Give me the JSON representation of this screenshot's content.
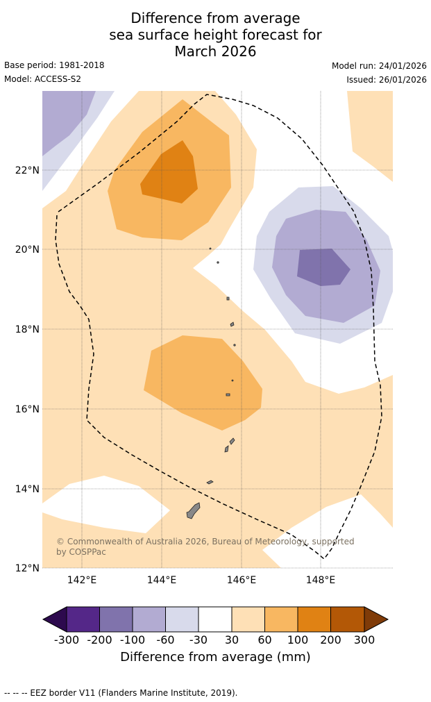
{
  "title": {
    "line1": "Difference from average",
    "line2": "sea surface height forecast for",
    "line3": "March 2026"
  },
  "meta": {
    "base_period": "Base period: 1981-2018",
    "model": "Model: ACCESS-S2",
    "model_run": "Model run: 24/01/2026",
    "issued": "Issued: 26/01/2026"
  },
  "map": {
    "lat_labels": [
      "22°N",
      "20°N",
      "18°N",
      "16°N",
      "14°N",
      "12°N"
    ],
    "lon_labels": [
      "142°E",
      "144°E",
      "146°E",
      "148°E"
    ],
    "copyright_line1": "© Commonwealth of Australia 2026, Bureau of Meteorology, supported",
    "copyright_line2": "by COSPPac",
    "colors": {
      "neg300": "#2d0a4e",
      "neg200": "#542788",
      "neg100": "#8073ac",
      "neg60": "#b2abd2",
      "neg30": "#d8daeb",
      "zero": "#ffffff",
      "pos30": "#fee0b6",
      "pos60": "#f8b761",
      "pos100": "#e08214",
      "pos200": "#b35806",
      "pos300": "#7f3b08"
    }
  },
  "colorbar": {
    "ticks": [
      "-300",
      "-200",
      "-100",
      "-60",
      "-30",
      "30",
      "60",
      "100",
      "200",
      "300"
    ],
    "title": "Difference from average (mm)"
  },
  "footer": "-- -- -- EEZ border V11 (Flanders Marine Institute, 2019)."
}
